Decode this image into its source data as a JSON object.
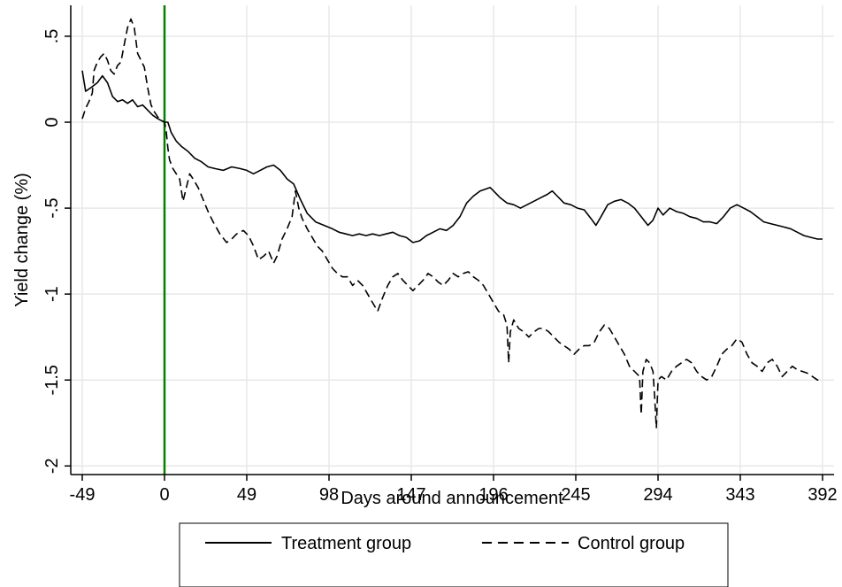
{
  "chart_data": {
    "type": "line",
    "title": "",
    "xlabel": "Days around announcement",
    "ylabel": "Yield change (%)",
    "xlim": [
      -49,
      392
    ],
    "ylim": [
      -2.05,
      0.68
    ],
    "x_ticks": [
      -49,
      0,
      49,
      98,
      147,
      196,
      245,
      294,
      343,
      392
    ],
    "x_tick_labels": [
      "-49",
      "0",
      "49",
      "98",
      "147",
      "196",
      "245",
      "294",
      "343",
      "392"
    ],
    "y_ticks": [
      -2,
      -1.5,
      -1,
      -0.5,
      0,
      0.5
    ],
    "y_tick_labels": [
      "-2",
      "-1.5",
      "-1",
      "-.5",
      "0",
      ".5"
    ],
    "grid": true,
    "legend_position": "bottom",
    "annotations": [
      {
        "type": "vertical-line",
        "x": 0,
        "color": "#008000"
      }
    ],
    "series": [
      {
        "name": "Treatment group",
        "style": "solid",
        "color": "#000000",
        "points": [
          [
            -49,
            0.3
          ],
          [
            -47,
            0.18
          ],
          [
            -44,
            0.2
          ],
          [
            -40,
            0.23
          ],
          [
            -37,
            0.27
          ],
          [
            -34,
            0.23
          ],
          [
            -31,
            0.15
          ],
          [
            -28,
            0.12
          ],
          [
            -25,
            0.13
          ],
          [
            -22,
            0.11
          ],
          [
            -19,
            0.13
          ],
          [
            -16,
            0.09
          ],
          [
            -13,
            0.1
          ],
          [
            -10,
            0.07
          ],
          [
            -7,
            0.04
          ],
          [
            -4,
            0.02
          ],
          [
            -2,
            0.01
          ],
          [
            0,
            0
          ],
          [
            2,
            0.0
          ],
          [
            4,
            -0.06
          ],
          [
            7,
            -0.11
          ],
          [
            10,
            -0.14
          ],
          [
            14,
            -0.17
          ],
          [
            18,
            -0.21
          ],
          [
            22,
            -0.23
          ],
          [
            26,
            -0.26
          ],
          [
            30,
            -0.27
          ],
          [
            35,
            -0.28
          ],
          [
            40,
            -0.26
          ],
          [
            45,
            -0.27
          ],
          [
            49,
            -0.28
          ],
          [
            53,
            -0.3
          ],
          [
            57,
            -0.28
          ],
          [
            61,
            -0.26
          ],
          [
            65,
            -0.25
          ],
          [
            69,
            -0.28
          ],
          [
            73,
            -0.33
          ],
          [
            77,
            -0.36
          ],
          [
            81,
            -0.45
          ],
          [
            85,
            -0.53
          ],
          [
            90,
            -0.58
          ],
          [
            95,
            -0.6
          ],
          [
            100,
            -0.62
          ],
          [
            104,
            -0.64
          ],
          [
            108,
            -0.65
          ],
          [
            112,
            -0.66
          ],
          [
            116,
            -0.65
          ],
          [
            120,
            -0.66
          ],
          [
            124,
            -0.65
          ],
          [
            128,
            -0.66
          ],
          [
            132,
            -0.65
          ],
          [
            136,
            -0.64
          ],
          [
            140,
            -0.66
          ],
          [
            144,
            -0.67
          ],
          [
            148,
            -0.7
          ],
          [
            152,
            -0.69
          ],
          [
            156,
            -0.66
          ],
          [
            160,
            -0.64
          ],
          [
            164,
            -0.62
          ],
          [
            168,
            -0.63
          ],
          [
            172,
            -0.6
          ],
          [
            176,
            -0.55
          ],
          [
            180,
            -0.47
          ],
          [
            184,
            -0.43
          ],
          [
            188,
            -0.4
          ],
          [
            191,
            -0.39
          ],
          [
            194,
            -0.38
          ],
          [
            197,
            -0.41
          ],
          [
            200,
            -0.44
          ],
          [
            204,
            -0.47
          ],
          [
            208,
            -0.48
          ],
          [
            212,
            -0.5
          ],
          [
            216,
            -0.48
          ],
          [
            220,
            -0.46
          ],
          [
            224,
            -0.44
          ],
          [
            228,
            -0.42
          ],
          [
            231,
            -0.4
          ],
          [
            234,
            -0.43
          ],
          [
            238,
            -0.47
          ],
          [
            242,
            -0.48
          ],
          [
            246,
            -0.5
          ],
          [
            250,
            -0.51
          ],
          [
            254,
            -0.56
          ],
          [
            257,
            -0.6
          ],
          [
            260,
            -0.55
          ],
          [
            264,
            -0.48
          ],
          [
            268,
            -0.46
          ],
          [
            272,
            -0.45
          ],
          [
            276,
            -0.47
          ],
          [
            280,
            -0.5
          ],
          [
            284,
            -0.55
          ],
          [
            288,
            -0.6
          ],
          [
            291,
            -0.57
          ],
          [
            294,
            -0.5
          ],
          [
            297,
            -0.54
          ],
          [
            301,
            -0.5
          ],
          [
            305,
            -0.52
          ],
          [
            309,
            -0.53
          ],
          [
            313,
            -0.55
          ],
          [
            317,
            -0.56
          ],
          [
            321,
            -0.58
          ],
          [
            325,
            -0.58
          ],
          [
            329,
            -0.59
          ],
          [
            333,
            -0.55
          ],
          [
            337,
            -0.5
          ],
          [
            341,
            -0.48
          ],
          [
            345,
            -0.5
          ],
          [
            349,
            -0.52
          ],
          [
            353,
            -0.55
          ],
          [
            357,
            -0.58
          ],
          [
            361,
            -0.59
          ],
          [
            365,
            -0.6
          ],
          [
            369,
            -0.61
          ],
          [
            373,
            -0.62
          ],
          [
            377,
            -0.64
          ],
          [
            381,
            -0.66
          ],
          [
            385,
            -0.67
          ],
          [
            389,
            -0.68
          ],
          [
            392,
            -0.68
          ]
        ]
      },
      {
        "name": "Control group",
        "style": "dashed",
        "color": "#000000",
        "points": [
          [
            -49,
            0.02
          ],
          [
            -47,
            0.08
          ],
          [
            -45,
            0.12
          ],
          [
            -43,
            0.17
          ],
          [
            -42,
            0.3
          ],
          [
            -40,
            0.35
          ],
          [
            -38,
            0.38
          ],
          [
            -36,
            0.4
          ],
          [
            -34,
            0.36
          ],
          [
            -32,
            0.3
          ],
          [
            -30,
            0.28
          ],
          [
            -28,
            0.33
          ],
          [
            -26,
            0.35
          ],
          [
            -24,
            0.45
          ],
          [
            -22,
            0.55
          ],
          [
            -20,
            0.6
          ],
          [
            -18,
            0.55
          ],
          [
            -16,
            0.4
          ],
          [
            -14,
            0.36
          ],
          [
            -12,
            0.32
          ],
          [
            -10,
            0.2
          ],
          [
            -8,
            0.1
          ],
          [
            -6,
            0.06
          ],
          [
            -4,
            0.03
          ],
          [
            -2,
            0.01
          ],
          [
            0,
            0
          ],
          [
            1,
            -0.05
          ],
          [
            2,
            -0.15
          ],
          [
            3,
            -0.22
          ],
          [
            5,
            -0.27
          ],
          [
            7,
            -0.3
          ],
          [
            9,
            -0.33
          ],
          [
            11,
            -0.46
          ],
          [
            13,
            -0.38
          ],
          [
            15,
            -0.3
          ],
          [
            17,
            -0.33
          ],
          [
            20,
            -0.38
          ],
          [
            23,
            -0.45
          ],
          [
            26,
            -0.52
          ],
          [
            29,
            -0.58
          ],
          [
            33,
            -0.65
          ],
          [
            37,
            -0.7
          ],
          [
            40,
            -0.68
          ],
          [
            43,
            -0.65
          ],
          [
            47,
            -0.63
          ],
          [
            50,
            -0.66
          ],
          [
            53,
            -0.72
          ],
          [
            56,
            -0.8
          ],
          [
            59,
            -0.78
          ],
          [
            62,
            -0.75
          ],
          [
            65,
            -0.82
          ],
          [
            67,
            -0.78
          ],
          [
            70,
            -0.68
          ],
          [
            73,
            -0.62
          ],
          [
            76,
            -0.55
          ],
          [
            78,
            -0.4
          ],
          [
            80,
            -0.5
          ],
          [
            82,
            -0.56
          ],
          [
            85,
            -0.62
          ],
          [
            88,
            -0.67
          ],
          [
            91,
            -0.72
          ],
          [
            94,
            -0.75
          ],
          [
            97,
            -0.8
          ],
          [
            100,
            -0.85
          ],
          [
            103,
            -0.88
          ],
          [
            106,
            -0.9
          ],
          [
            109,
            -0.9
          ],
          [
            112,
            -0.95
          ],
          [
            115,
            -0.92
          ],
          [
            118,
            -0.95
          ],
          [
            121,
            -1.0
          ],
          [
            124,
            -1.05
          ],
          [
            127,
            -1.1
          ],
          [
            130,
            -1.02
          ],
          [
            133,
            -0.95
          ],
          [
            136,
            -0.9
          ],
          [
            139,
            -0.88
          ],
          [
            142,
            -0.92
          ],
          [
            145,
            -0.95
          ],
          [
            148,
            -0.98
          ],
          [
            151,
            -0.95
          ],
          [
            154,
            -0.92
          ],
          [
            157,
            -0.88
          ],
          [
            160,
            -0.9
          ],
          [
            163,
            -0.93
          ],
          [
            166,
            -0.95
          ],
          [
            169,
            -0.92
          ],
          [
            172,
            -0.88
          ],
          [
            175,
            -0.9
          ],
          [
            178,
            -0.88
          ],
          [
            181,
            -0.87
          ],
          [
            184,
            -0.9
          ],
          [
            187,
            -0.92
          ],
          [
            190,
            -0.95
          ],
          [
            193,
            -1.0
          ],
          [
            196,
            -1.05
          ],
          [
            199,
            -1.1
          ],
          [
            202,
            -1.12
          ],
          [
            204,
            -1.18
          ],
          [
            205,
            -1.4
          ],
          [
            206,
            -1.22
          ],
          [
            208,
            -1.15
          ],
          [
            211,
            -1.2
          ],
          [
            214,
            -1.22
          ],
          [
            217,
            -1.25
          ],
          [
            220,
            -1.22
          ],
          [
            223,
            -1.2
          ],
          [
            226,
            -1.2
          ],
          [
            229,
            -1.22
          ],
          [
            232,
            -1.25
          ],
          [
            235,
            -1.28
          ],
          [
            238,
            -1.3
          ],
          [
            241,
            -1.32
          ],
          [
            244,
            -1.35
          ],
          [
            247,
            -1.32
          ],
          [
            250,
            -1.3
          ],
          [
            253,
            -1.3
          ],
          [
            256,
            -1.28
          ],
          [
            259,
            -1.22
          ],
          [
            262,
            -1.18
          ],
          [
            265,
            -1.2
          ],
          [
            268,
            -1.25
          ],
          [
            271,
            -1.3
          ],
          [
            274,
            -1.35
          ],
          [
            277,
            -1.42
          ],
          [
            280,
            -1.45
          ],
          [
            283,
            -1.48
          ],
          [
            284,
            -1.7
          ],
          [
            285,
            -1.45
          ],
          [
            287,
            -1.38
          ],
          [
            289,
            -1.4
          ],
          [
            291,
            -1.45
          ],
          [
            292,
            -1.6
          ],
          [
            293,
            -1.78
          ],
          [
            294,
            -1.5
          ],
          [
            296,
            -1.48
          ],
          [
            299,
            -1.5
          ],
          [
            302,
            -1.45
          ],
          [
            305,
            -1.42
          ],
          [
            308,
            -1.4
          ],
          [
            311,
            -1.38
          ],
          [
            314,
            -1.4
          ],
          [
            317,
            -1.45
          ],
          [
            320,
            -1.48
          ],
          [
            323,
            -1.5
          ],
          [
            326,
            -1.48
          ],
          [
            329,
            -1.42
          ],
          [
            332,
            -1.35
          ],
          [
            335,
            -1.32
          ],
          [
            338,
            -1.3
          ],
          [
            341,
            -1.26
          ],
          [
            344,
            -1.28
          ],
          [
            347,
            -1.35
          ],
          [
            350,
            -1.4
          ],
          [
            353,
            -1.42
          ],
          [
            356,
            -1.45
          ],
          [
            359,
            -1.4
          ],
          [
            362,
            -1.38
          ],
          [
            365,
            -1.42
          ],
          [
            368,
            -1.48
          ],
          [
            371,
            -1.45
          ],
          [
            374,
            -1.42
          ],
          [
            377,
            -1.44
          ],
          [
            380,
            -1.45
          ],
          [
            383,
            -1.46
          ],
          [
            386,
            -1.48
          ],
          [
            389,
            -1.5
          ],
          [
            392,
            -1.5
          ]
        ]
      }
    ]
  }
}
